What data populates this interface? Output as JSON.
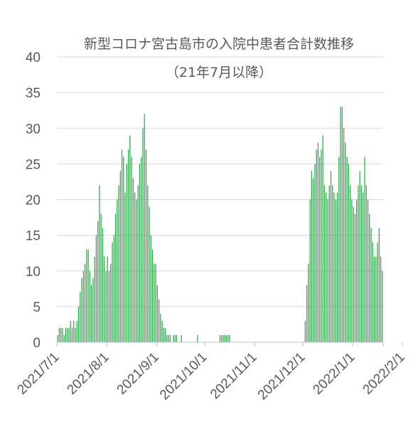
{
  "chart_data": {
    "type": "bar",
    "title": "新型コロナ宮古島市の入院中患者合計数推移",
    "subtitle": "（21年7月以降）",
    "xlabel": "",
    "ylabel": "",
    "ylim": [
      0,
      40
    ],
    "yticks": [
      "0",
      "5",
      "10",
      "15",
      "20",
      "25",
      "30",
      "35",
      "40"
    ],
    "xticks": [
      "2021/7/1",
      "2021/8/1",
      "2021/9/1",
      "2021/10/1",
      "2021/11/1",
      "2021/12/1",
      "2022/1/1",
      "2022/2/1"
    ],
    "grid": true,
    "legend": "none",
    "bar_color": "#2ea34a",
    "series": [
      {
        "start_date": "2021-07-01",
        "values": [
          1,
          2,
          2,
          2,
          1,
          2,
          2,
          2,
          3,
          2,
          3,
          2,
          3,
          5,
          7,
          9,
          10,
          11,
          13,
          13,
          10,
          8,
          9,
          12,
          15,
          17,
          22,
          18,
          16,
          12,
          10,
          12,
          10,
          11,
          14,
          15,
          18,
          20,
          22,
          24,
          27,
          26,
          21,
          25,
          27,
          29,
          26,
          23,
          21,
          20,
          22,
          25,
          26,
          30,
          32,
          27,
          22,
          19,
          15,
          13,
          11,
          11,
          8,
          6,
          4,
          3,
          2,
          2,
          1,
          1,
          1,
          0,
          1,
          1,
          1,
          0,
          0,
          1,
          0,
          0,
          0,
          0,
          0,
          0,
          0,
          0,
          0,
          1,
          0,
          0,
          0,
          0,
          0,
          0,
          0,
          0,
          0,
          0,
          0,
          0,
          0,
          1,
          1,
          1,
          1,
          1,
          1,
          1,
          0,
          0,
          0,
          0,
          0,
          0,
          0,
          0,
          0,
          0,
          0,
          0,
          0,
          0,
          0,
          0,
          0,
          0,
          0,
          0,
          0,
          0,
          0,
          0,
          0,
          0,
          0,
          0,
          0,
          0,
          0,
          0,
          0,
          0,
          0,
          0,
          0,
          0,
          0,
          0,
          0,
          0,
          0,
          0,
          0,
          0,
          3,
          8,
          11,
          20,
          24,
          23,
          25,
          27,
          28,
          26,
          27,
          29,
          22,
          21,
          20,
          22,
          24,
          22,
          21,
          20,
          21,
          26,
          33,
          33,
          30,
          28,
          26,
          25,
          22,
          20,
          19,
          18,
          20,
          22,
          24,
          22,
          21,
          26,
          22,
          20,
          18,
          16,
          14,
          12,
          12,
          14,
          16,
          12,
          10
        ]
      }
    ]
  }
}
